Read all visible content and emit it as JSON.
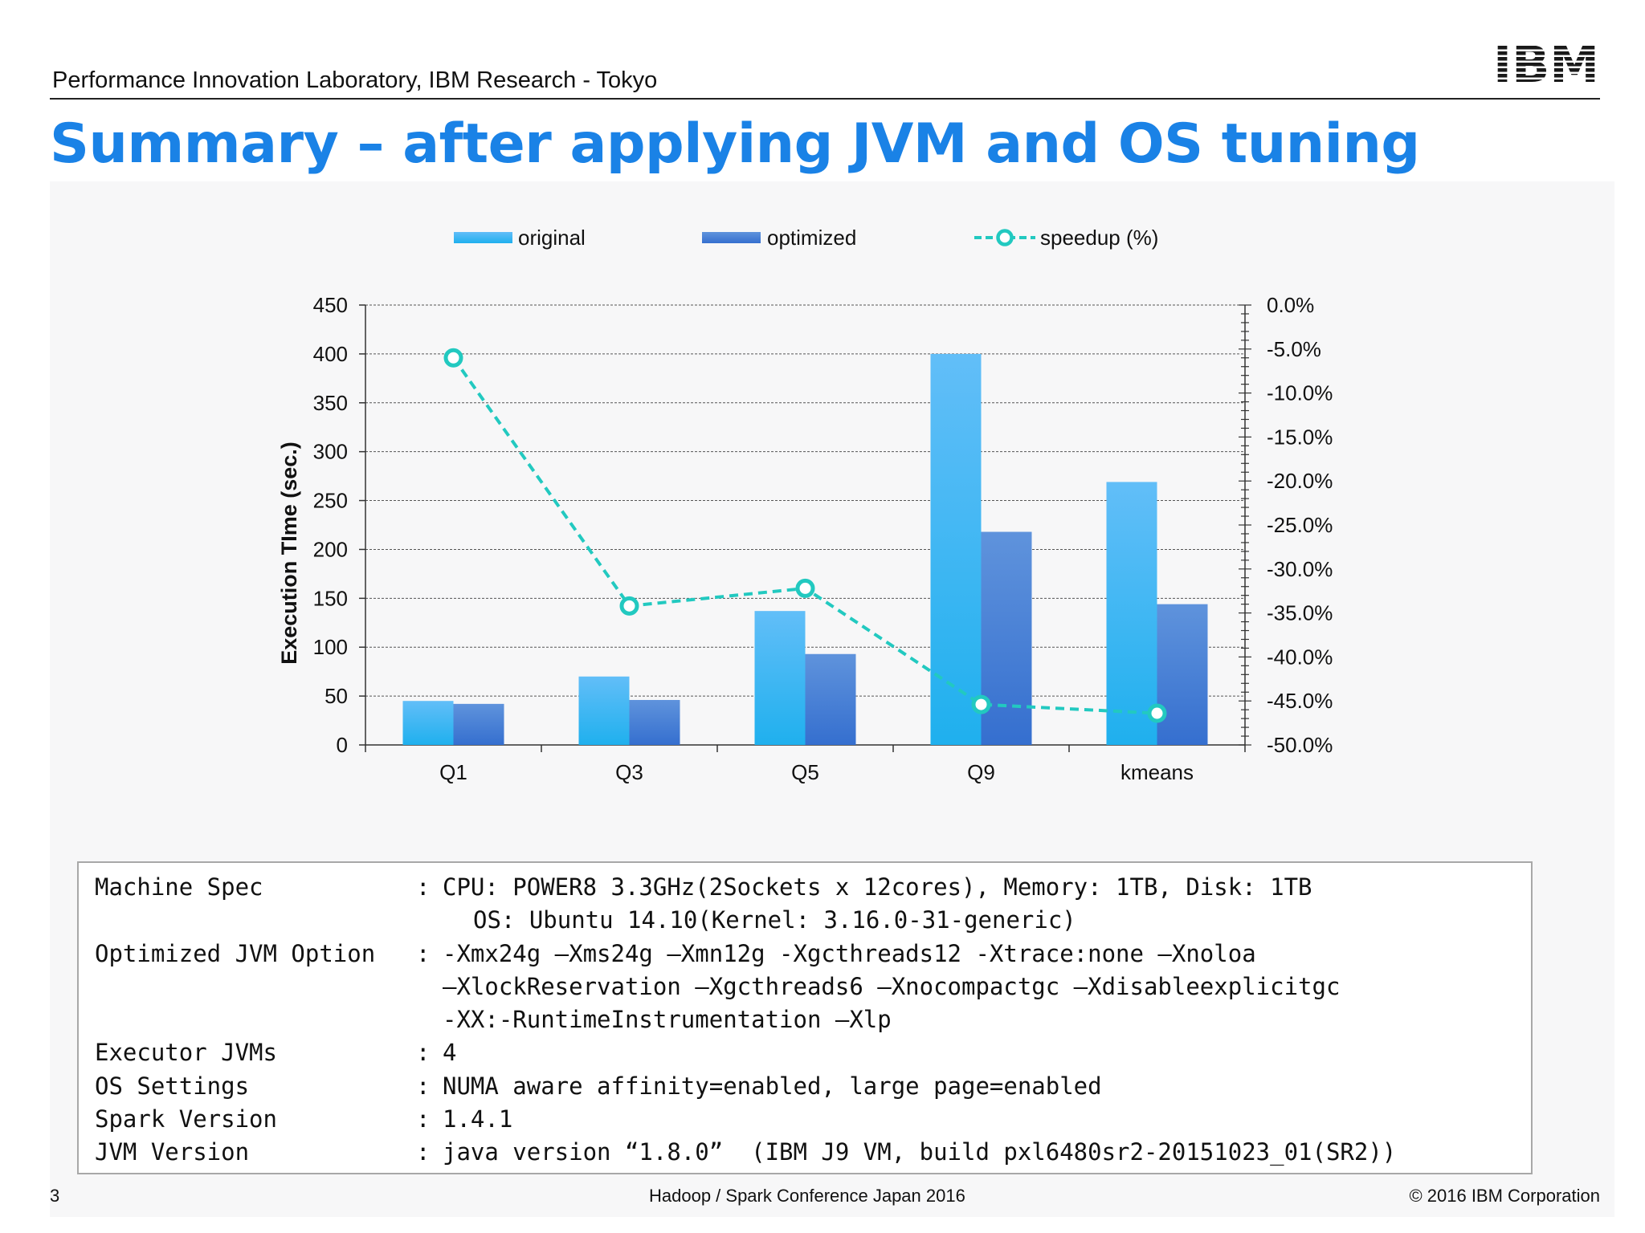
{
  "header": {
    "lab": "Performance Innovation Laboratory, IBM Research - Tokyo",
    "logo_text": "IBM",
    "title": "Summary – after applying JVM and OS tuning"
  },
  "chart_data": {
    "type": "bar",
    "categories": [
      "Q1",
      "Q3",
      "Q5",
      "Q9",
      "kmeans"
    ],
    "series": [
      {
        "name": "original",
        "values": [
          45,
          70,
          137,
          400,
          269
        ],
        "color": "#3ab4f2"
      },
      {
        "name": "optimized",
        "values": [
          42,
          46,
          93,
          218,
          144
        ],
        "color": "#3f7fd6"
      }
    ],
    "line_series": {
      "name": "speedup (%)",
      "values": [
        -6.0,
        -34.2,
        -32.2,
        -45.4,
        -46.4
      ],
      "color": "#22c9c0",
      "axis": "right"
    },
    "ylabel": "Execution TIme (sec.)",
    "ylim": [
      0,
      450
    ],
    "yticks": [
      0,
      50,
      100,
      150,
      200,
      250,
      300,
      350,
      400,
      450
    ],
    "y2lim": [
      -50,
      0
    ],
    "y2ticks": [
      "-50.0%",
      "-45.0%",
      "-40.0%",
      "-35.0%",
      "-30.0%",
      "-25.0%",
      "-20.0%",
      "-15.0%",
      "-10.0%",
      "-5.0%",
      "0.0%"
    ],
    "grid": true,
    "legend": "top"
  },
  "spec": {
    "machine_label": "Machine Spec",
    "machine_value": "CPU: POWER8 3.3GHz(2Sockets x 12cores), Memory: 1TB, Disk: 1TB",
    "machine_value2": "OS: Ubuntu 14.10(Kernel: 3.16.0-31-generic)",
    "jvm_option_label": "Optimized JVM Option",
    "jvm_option_value": "-Xmx24g –Xms24g –Xmn12g -Xgcthreads12 -Xtrace:none –Xnoloa",
    "jvm_option_value2": "–XlockReservation –Xgcthreads6 –Xnocompactgc –Xdisableexplicitgc",
    "jvm_option_value3": "-XX:-RuntimeInstrumentation –Xlp",
    "executor_label": "Executor JVMs",
    "executor_value": "4",
    "os_label": "OS Settings",
    "os_value": "NUMA aware affinity=enabled, large page=enabled",
    "spark_label": "Spark Version",
    "spark_value": "1.4.1",
    "jvm_version_label": "JVM Version",
    "jvm_version_value": "java version “1.8.0”  (IBM J9 VM, build pxl6480sr2-20151023_01(SR2))",
    "separator": ":"
  },
  "footer": {
    "page_number": "3",
    "event": "Hadoop / Spark Conference Japan 2016",
    "copyright": "© 2016 IBM Corporation"
  }
}
